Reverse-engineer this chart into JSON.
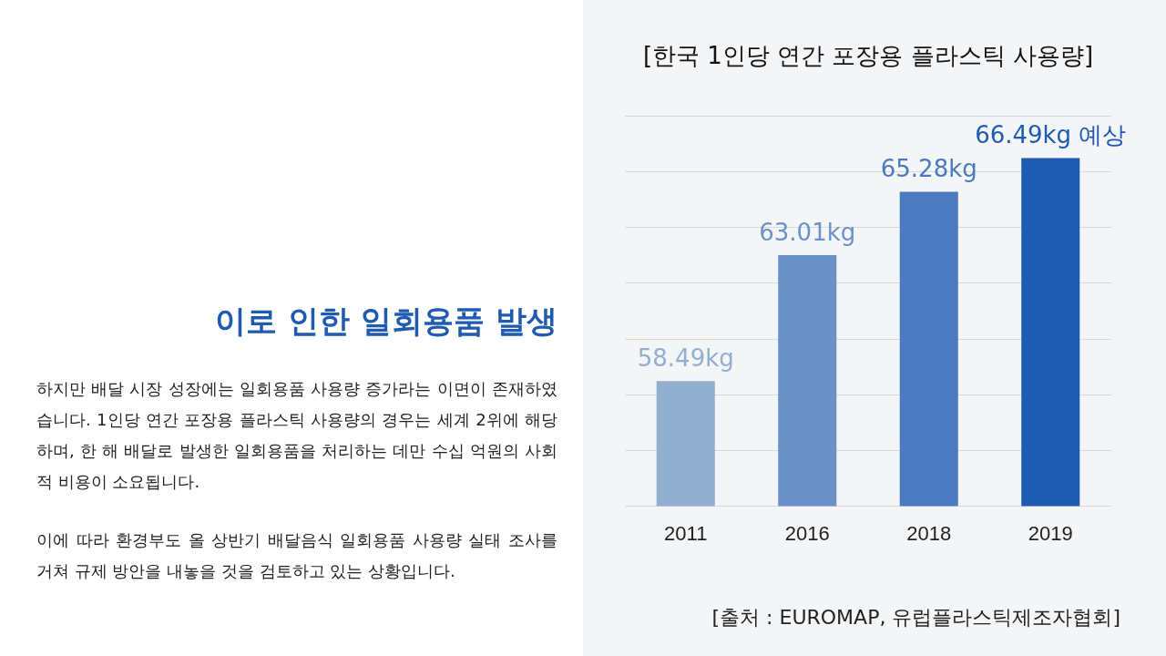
{
  "chart_data": [
    {
      "type": "other",
      "title": "이로 인한 일회용품 발생",
      "annotations": [
        " 하지만 배달 시장 성장에는 일회용품 사용량 증가라는 이면이 존재하였습니다. 1인당 연간 포장용 플라스틱 사용량의 경우는 세계 2위에 해당하며, 한 해 배달로 발생한 일회용품을 처리하는 데만 수십 억원의 사회적 비용이 소요됩니다.",
        " 이에 따라 환경부도 올 상반기 배달음식 일회용품 사용량 실태 조사를 거쳐 규제 방안을 내놓을 것을 검토하고 있는 상황입니다."
      ]
    },
    {
      "type": "bar",
      "title": "[한국 1인당 연간 포장용 플라스틱 사용량]",
      "categories": [
        "2011",
        "2016",
        "2018",
        "2019"
      ],
      "values": [
        58.49,
        63.01,
        65.28,
        66.49
      ],
      "colors": [
        "#92afd0",
        "#6b91c7",
        "#4a7bc0",
        "#1f5bb0"
      ],
      "value_labels": [
        "58.49kg",
        "63.01kg",
        "65.28kg",
        "66.49kg 예상"
      ],
      "ylim": [
        54,
        68
      ],
      "yticks": [
        {
          "value": 54,
          "label": null
        },
        {
          "value": 56,
          "label": null
        },
        {
          "value": 58,
          "label": null
        },
        {
          "value": 60,
          "label": null
        },
        {
          "value": 62,
          "label": null
        },
        {
          "value": 64,
          "label": null
        },
        {
          "value": 66,
          "label": null
        },
        {
          "value": 68,
          "label": null
        }
      ],
      "tick_labels": "x",
      "grid": "y",
      "legend": false,
      "annotations": [
        "[출처 : EUROMAP, 유럽플라스틱제조자협회]"
      ]
    }
  ]
}
